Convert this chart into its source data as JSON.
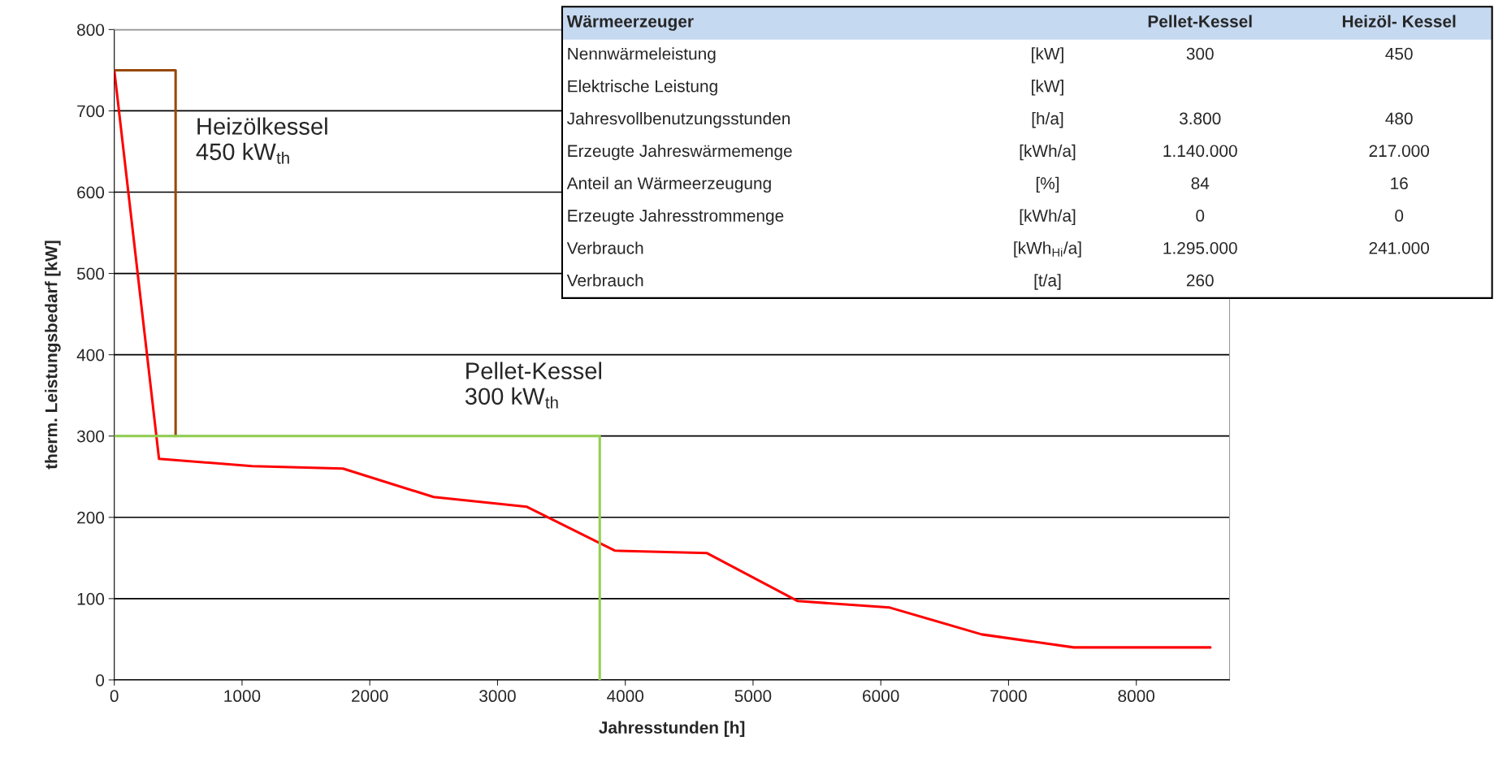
{
  "chart_data": {
    "type": "line",
    "xlabel": "Jahresstunden [h]",
    "ylabel": "therm. Leistungsbedarf [kW]",
    "series": [
      {
        "color": "#ff0000",
        "x": [
          0,
          350,
          1080,
          1790,
          2500,
          3230,
          3920,
          4640,
          5350,
          6070,
          6790,
          7510,
          8580
        ],
        "values": [
          750,
          272,
          263,
          260,
          225,
          213,
          159,
          156,
          97,
          89,
          56,
          40,
          40
        ]
      },
      {
        "color": "#984807",
        "x": [
          0,
          480,
          480
        ],
        "values": [
          750,
          750,
          300
        ]
      },
      {
        "color": "#92d050",
        "x": [
          0,
          3800,
          3800
        ],
        "values": [
          300,
          300,
          0
        ]
      }
    ],
    "xlim": [
      0,
      8730
    ],
    "xticks": [
      0,
      1000,
      2000,
      3000,
      4000,
      5000,
      6000,
      7000,
      8000
    ],
    "ylim": [
      0,
      800
    ],
    "yticks": [
      0,
      100,
      200,
      300,
      400,
      500,
      600,
      700,
      800
    ],
    "grid": "y",
    "marker": "none",
    "line_style": "solid",
    "annotations": [
      "Heizölkessel\n450 kW$_{th}$",
      "Pellet-Kessel\n300 kW$_{th}$",
      "Wärmeerzeuger",
      null,
      "Pellet-Kessel",
      "Heizöl- Kessel",
      "Nennwärmeleistung",
      "[kW]",
      "300",
      "450",
      "Elektrische Leistung",
      "[kW]",
      null,
      null,
      "Jahresvollbenutzungsstunden",
      "[h/a]",
      "3.800",
      "480",
      "Erzeugte Jahreswärmemenge",
      "[kWh/a]",
      "1.140.000",
      "217.000",
      "Anteil an Wärmeerzeugung",
      "[%]",
      "84",
      "16",
      "Erzeugte Jahresstrommenge",
      "[kWh/a]",
      "0",
      "0",
      "Verbrauch",
      "[kWh$_{Hi}$/a]",
      "1.295.000",
      "241.000",
      "Verbrauch",
      "[t/a]",
      "260",
      null
    ]
  }
}
